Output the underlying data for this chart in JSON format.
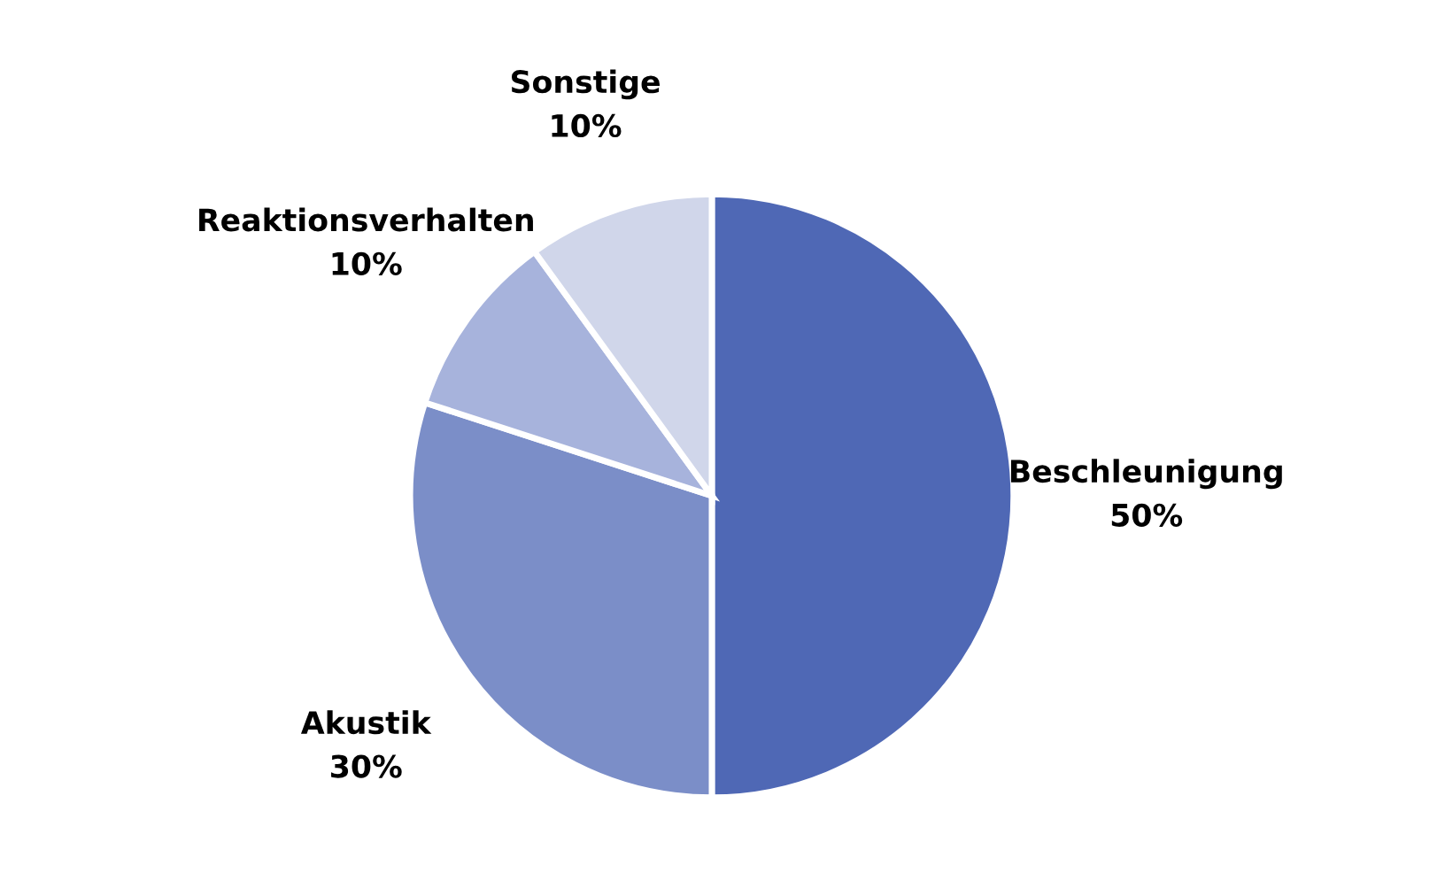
{
  "chart_data": {
    "type": "pie",
    "categories": [
      "Beschleunigung",
      "Akustik",
      "Reaktionsverhalten",
      "Sonstige"
    ],
    "values": [
      50,
      30,
      10,
      10
    ],
    "value_labels": [
      "50%",
      "30%",
      "10%",
      "10%"
    ],
    "colors": [
      "#4f68b5",
      "#7b8ec8",
      "#a7b3dc",
      "#d0d6ea"
    ],
    "legend": false
  }
}
